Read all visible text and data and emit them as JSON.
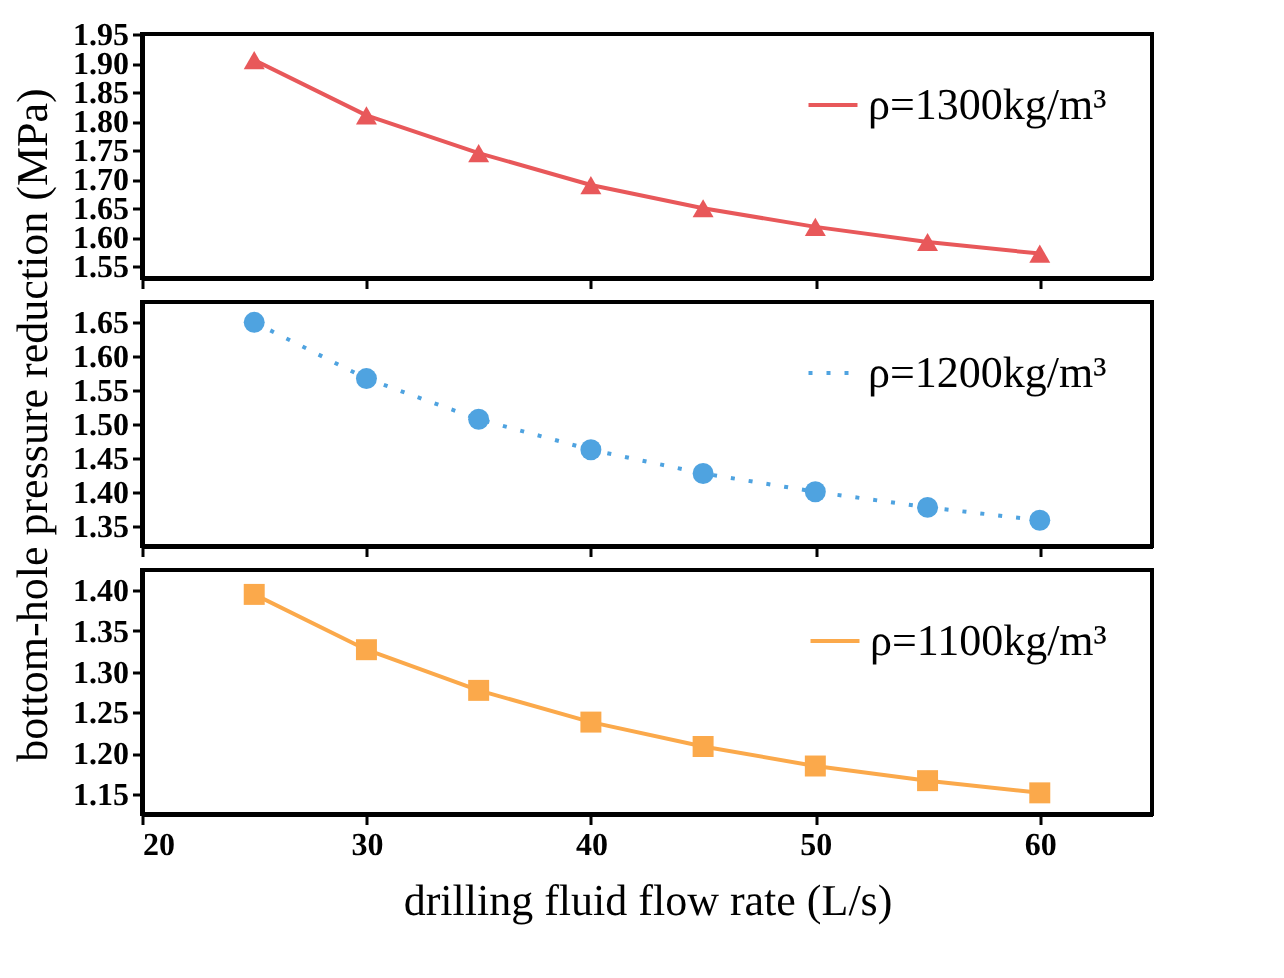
{
  "chart_data": [
    {
      "type": "line",
      "x": [
        25,
        30,
        35,
        40,
        45,
        50,
        55,
        60
      ],
      "series": [
        {
          "name": "ρ=1300kg/m³",
          "color": "#e8585a",
          "values": [
            1.905,
            1.81,
            1.745,
            1.69,
            1.65,
            1.618,
            1.592,
            1.572
          ]
        }
      ],
      "marker": "triangle",
      "line_style": "solid",
      "xlim": [
        20,
        65
      ],
      "xticks": [
        20,
        30,
        40,
        50,
        60
      ],
      "ylim": [
        1.53,
        1.95
      ],
      "yticks": [
        1.55,
        {
          "value": 1.6,
          "label": "1.60"
        },
        1.65,
        {
          "value": 1.7,
          "label": "1.70"
        },
        1.75,
        {
          "value": 1.8,
          "label": "1.80"
        },
        1.85,
        {
          "value": 1.9,
          "label": "1.90"
        },
        1.95
      ],
      "tick_labels": "y",
      "grid": false,
      "legend": "top right"
    },
    {
      "type": "line",
      "x": [
        25,
        30,
        35,
        40,
        45,
        50,
        55,
        60
      ],
      "series": [
        {
          "name": "ρ=1200kg/m³",
          "color": "#4fa3e0",
          "values": [
            1.65,
            1.567,
            1.507,
            1.462,
            1.427,
            1.4,
            1.377,
            1.358
          ]
        }
      ],
      "marker": "circle",
      "line_style": "dotted",
      "ylabel": "bottom-hole pressure reduction (MPa)",
      "xlim": [
        20,
        65
      ],
      "xticks": [
        20,
        30,
        40,
        50,
        60
      ],
      "ylim": [
        1.32,
        1.68
      ],
      "yticks": [
        1.35,
        {
          "value": 1.4,
          "label": "1.40"
        },
        1.45,
        {
          "value": 1.5,
          "label": "1.50"
        },
        1.55,
        {
          "value": 1.6,
          "label": "1.60"
        },
        1.65
      ],
      "tick_labels": "y",
      "grid": false,
      "legend": "top right"
    },
    {
      "type": "line",
      "x": [
        25,
        30,
        35,
        40,
        45,
        50,
        55,
        60
      ],
      "series": [
        {
          "name": "ρ=1100kg/m³",
          "color": "#fba94b",
          "values": [
            1.395,
            1.327,
            1.277,
            1.238,
            1.208,
            1.184,
            1.166,
            1.151
          ]
        }
      ],
      "marker": "square",
      "line_style": "solid",
      "xlabel": "drilling fluid flow rate (L/s)",
      "xlim": [
        20,
        65
      ],
      "xticks": [
        20,
        30,
        40,
        50,
        60
      ],
      "ylim": [
        1.125,
        1.425
      ],
      "yticks": [
        1.15,
        {
          "value": 1.2,
          "label": "1.20"
        },
        1.25,
        {
          "value": 1.3,
          "label": "1.30"
        },
        1.35,
        {
          "value": 1.4,
          "label": "1.40"
        }
      ],
      "grid": false,
      "legend": "top right"
    }
  ]
}
